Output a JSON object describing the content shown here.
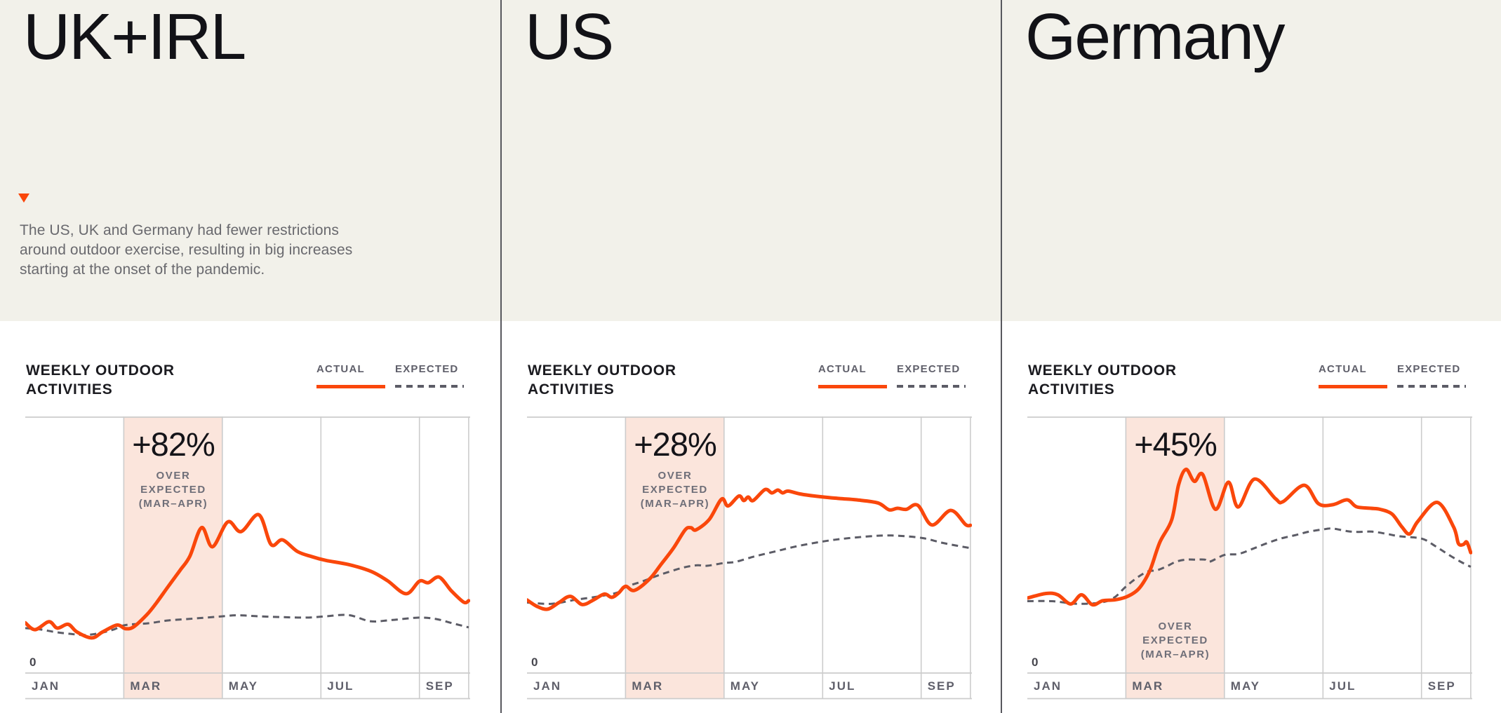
{
  "page": {
    "background": "#ffffff",
    "header_background": "#f2f1ea",
    "accent_orange": "#fa470b",
    "highlight_pink": "#fbe5dc",
    "divider_color": "#58585e",
    "gridline_color": "#cccccc",
    "expected_line_color": "#5c5c66",
    "label_gray": "#5f5f6a",
    "value_scale_note": "series values are 0-100 = share of plot height above the 0 baseline (estimated from pixels)"
  },
  "chart_data": [
    {
      "type": "line",
      "panel_title": "UK+IRL",
      "annotation": {
        "marker": "triangle-down",
        "lines": [
          "The US, UK and Germany had fewer restrictions",
          "around outdoor exercise, resulting in big increases",
          "starting at the onset of the pandemic."
        ]
      },
      "title_lines": [
        "WEEKLY OUTDOOR",
        "ACTIVITIES"
      ],
      "legend": [
        {
          "label": "ACTUAL",
          "style": "solid"
        },
        {
          "label": "EXPECTED",
          "style": "dashed"
        }
      ],
      "x_ticks": [
        "JAN",
        "MAR",
        "MAY",
        "JUL",
        "SEP"
      ],
      "zero_label": "0",
      "x_range_months": [
        0,
        9.0
      ],
      "gridline_months": [
        2,
        4,
        6,
        8
      ],
      "highlight": {
        "from_month": 2,
        "to_month": 4,
        "label": "+82%",
        "sub_lines": [
          "OVER",
          "EXPECTED",
          "(MAR–APR)"
        ],
        "sub_position": "top"
      },
      "series": {
        "actual": [
          [
            0,
            19.6
          ],
          [
            0.2,
            16.9
          ],
          [
            0.48,
            20
          ],
          [
            0.65,
            17.5
          ],
          [
            0.87,
            19
          ],
          [
            1.05,
            16
          ],
          [
            1.35,
            13.7
          ],
          [
            1.57,
            16
          ],
          [
            1.86,
            18.7
          ],
          [
            2.03,
            17.3
          ],
          [
            2.2,
            18
          ],
          [
            2.47,
            22.8
          ],
          [
            2.66,
            27.3
          ],
          [
            2.9,
            33.7
          ],
          [
            3.14,
            40
          ],
          [
            3.34,
            45.5
          ],
          [
            3.58,
            56.7
          ],
          [
            3.8,
            49.2
          ],
          [
            4.11,
            58.9
          ],
          [
            4.38,
            55.1
          ],
          [
            4.74,
            61.7
          ],
          [
            4.99,
            50.1
          ],
          [
            5.22,
            51.9
          ],
          [
            5.52,
            47.4
          ],
          [
            5.81,
            45.4
          ],
          [
            6.1,
            43.9
          ],
          [
            6.56,
            42.3
          ],
          [
            7.02,
            39.6
          ],
          [
            7.35,
            36
          ],
          [
            7.73,
            30.9
          ],
          [
            8.0,
            35.8
          ],
          [
            8.18,
            35.2
          ],
          [
            8.4,
            37.4
          ],
          [
            8.65,
            32
          ],
          [
            8.9,
            27.6
          ],
          [
            9.0,
            28.2
          ]
        ],
        "expected": [
          [
            0,
            17.5
          ],
          [
            0.3,
            17
          ],
          [
            0.6,
            16
          ],
          [
            0.9,
            15.3
          ],
          [
            1.2,
            14.8
          ],
          [
            1.5,
            15.5
          ],
          [
            1.8,
            17
          ],
          [
            2.03,
            18.7
          ],
          [
            2.5,
            19.4
          ],
          [
            2.9,
            20.5
          ],
          [
            3.4,
            21.2
          ],
          [
            4.0,
            22.1
          ],
          [
            4.3,
            22.5
          ],
          [
            4.74,
            22.1
          ],
          [
            5.2,
            21.8
          ],
          [
            5.7,
            21.6
          ],
          [
            6.1,
            22.1
          ],
          [
            6.56,
            22.6
          ],
          [
            7.0,
            20.2
          ],
          [
            7.4,
            20.6
          ],
          [
            8.0,
            21.6
          ],
          [
            8.35,
            21
          ],
          [
            8.65,
            19.5
          ],
          [
            9.0,
            17.8
          ]
        ]
      }
    },
    {
      "type": "line",
      "panel_title": "US",
      "title_lines": [
        "WEEKLY OUTDOOR",
        "ACTIVITIES"
      ],
      "legend": [
        {
          "label": "ACTUAL",
          "style": "solid"
        },
        {
          "label": "EXPECTED",
          "style": "dashed"
        }
      ],
      "x_ticks": [
        "JAN",
        "MAR",
        "MAY",
        "JUL",
        "SEP"
      ],
      "zero_label": "0",
      "x_range_months": [
        0,
        9.0
      ],
      "gridline_months": [
        2,
        4,
        6,
        8
      ],
      "highlight": {
        "from_month": 2,
        "to_month": 4,
        "label": "+28%",
        "sub_lines": [
          "OVER",
          "EXPECTED",
          "(MAR–APR)"
        ],
        "sub_position": "top"
      },
      "series": {
        "actual": [
          [
            0,
            28.5
          ],
          [
            0.2,
            26
          ],
          [
            0.42,
            24.9
          ],
          [
            0.65,
            27.5
          ],
          [
            0.88,
            29.9
          ],
          [
            1.12,
            26.7
          ],
          [
            1.35,
            28.5
          ],
          [
            1.57,
            30.8
          ],
          [
            1.72,
            29.5
          ],
          [
            1.86,
            31.2
          ],
          [
            2.0,
            33.8
          ],
          [
            2.18,
            32.2
          ],
          [
            2.49,
            36.7
          ],
          [
            2.73,
            42.6
          ],
          [
            2.97,
            48.6
          ],
          [
            3.21,
            55.8
          ],
          [
            3.33,
            56.6
          ],
          [
            3.43,
            55.8
          ],
          [
            3.7,
            59.9
          ],
          [
            3.95,
            67.8
          ],
          [
            4.08,
            65.1
          ],
          [
            4.3,
            69
          ],
          [
            4.4,
            67.2
          ],
          [
            4.49,
            68.6
          ],
          [
            4.59,
            67.2
          ],
          [
            4.83,
            71.5
          ],
          [
            4.97,
            70.2
          ],
          [
            5.09,
            71.3
          ],
          [
            5.19,
            70.2
          ],
          [
            5.3,
            70.9
          ],
          [
            5.57,
            69.7
          ],
          [
            6.01,
            68.6
          ],
          [
            6.35,
            68
          ],
          [
            6.68,
            67.5
          ],
          [
            7.12,
            66.3
          ],
          [
            7.35,
            63.6
          ],
          [
            7.52,
            64.2
          ],
          [
            7.7,
            63.8
          ],
          [
            7.93,
            65.4
          ],
          [
            8.22,
            57.7
          ],
          [
            8.6,
            63.4
          ],
          [
            8.9,
            57.9
          ],
          [
            9.0,
            57.6
          ]
        ],
        "expected": [
          [
            0,
            27.5
          ],
          [
            0.5,
            27
          ],
          [
            1.0,
            28.6
          ],
          [
            1.5,
            30
          ],
          [
            1.86,
            31.5
          ],
          [
            2.0,
            33.5
          ],
          [
            2.35,
            35.8
          ],
          [
            2.73,
            38.5
          ],
          [
            3.17,
            41.1
          ],
          [
            3.46,
            42
          ],
          [
            3.65,
            41.8
          ],
          [
            4.0,
            42.9
          ],
          [
            4.23,
            43.3
          ],
          [
            4.61,
            45.4
          ],
          [
            5.0,
            47.2
          ],
          [
            5.38,
            49
          ],
          [
            5.77,
            50.5
          ],
          [
            6.15,
            51.7
          ],
          [
            6.54,
            52.6
          ],
          [
            6.97,
            53.3
          ],
          [
            7.24,
            53.6
          ],
          [
            7.55,
            53.5
          ],
          [
            8.03,
            52.6
          ],
          [
            8.42,
            50.8
          ],
          [
            8.76,
            49.5
          ],
          [
            9.0,
            48.7
          ]
        ]
      }
    },
    {
      "type": "line",
      "panel_title": "Germany",
      "title_lines": [
        "WEEKLY OUTDOOR",
        "ACTIVITIES"
      ],
      "legend": [
        {
          "label": "ACTUAL",
          "style": "solid"
        },
        {
          "label": "EXPECTED",
          "style": "dashed"
        }
      ],
      "x_ticks": [
        "JAN",
        "MAR",
        "MAY",
        "JUL",
        "SEP"
      ],
      "zero_label": "0",
      "x_range_months": [
        0,
        9.0
      ],
      "gridline_months": [
        2,
        4,
        6,
        8
      ],
      "highlight": {
        "from_month": 2,
        "to_month": 4,
        "label": "+45%",
        "sub_lines": [
          "OVER",
          "EXPECTED",
          "(MAR–APR)"
        ],
        "sub_position": "bottom"
      },
      "series": {
        "actual": [
          [
            0,
            29.2
          ],
          [
            0.38,
            31
          ],
          [
            0.62,
            30.5
          ],
          [
            0.88,
            26.9
          ],
          [
            1.1,
            30.5
          ],
          [
            1.32,
            26.6
          ],
          [
            1.53,
            28.2
          ],
          [
            1.77,
            28.5
          ],
          [
            2.0,
            29.6
          ],
          [
            2.21,
            31.9
          ],
          [
            2.35,
            35.1
          ],
          [
            2.5,
            40.5
          ],
          [
            2.69,
            51
          ],
          [
            2.93,
            59.7
          ],
          [
            3.07,
            73.3
          ],
          [
            3.22,
            79.4
          ],
          [
            3.39,
            74.7
          ],
          [
            3.56,
            77.4
          ],
          [
            3.82,
            63.8
          ],
          [
            4.08,
            74.4
          ],
          [
            4.28,
            64.7
          ],
          [
            4.61,
            75.6
          ],
          [
            5.04,
            67.9
          ],
          [
            5.19,
            66.8
          ],
          [
            5.62,
            73.2
          ],
          [
            5.91,
            66
          ],
          [
            6.2,
            65.6
          ],
          [
            6.49,
            67.5
          ],
          [
            6.68,
            64.8
          ],
          [
            6.97,
            64.2
          ],
          [
            7.16,
            63.8
          ],
          [
            7.4,
            62
          ],
          [
            7.6,
            57
          ],
          [
            7.76,
            54.2
          ],
          [
            7.93,
            59.2
          ],
          [
            8.32,
            66.5
          ],
          [
            8.65,
            57
          ],
          [
            8.75,
            50.5
          ],
          [
            8.85,
            50.1
          ],
          [
            8.92,
            51
          ],
          [
            9.0,
            46.9
          ]
        ],
        "expected": [
          [
            0,
            28
          ],
          [
            0.5,
            28
          ],
          [
            1.0,
            27
          ],
          [
            1.5,
            27.5
          ],
          [
            1.77,
            29.5
          ],
          [
            2.0,
            33.7
          ],
          [
            2.26,
            37.6
          ],
          [
            2.45,
            39.6
          ],
          [
            2.64,
            40.1
          ],
          [
            2.83,
            41.6
          ],
          [
            3.02,
            43.4
          ],
          [
            3.22,
            44.2
          ],
          [
            3.41,
            44.2
          ],
          [
            3.6,
            44.2
          ],
          [
            3.7,
            43.4
          ],
          [
            4.0,
            46
          ],
          [
            4.28,
            46.4
          ],
          [
            4.56,
            48.3
          ],
          [
            4.85,
            50.5
          ],
          [
            5.14,
            52.4
          ],
          [
            5.43,
            53.7
          ],
          [
            5.72,
            55.1
          ],
          [
            6.01,
            56
          ],
          [
            6.2,
            56.3
          ],
          [
            6.49,
            55.3
          ],
          [
            6.7,
            55
          ],
          [
            7.0,
            55.1
          ],
          [
            7.3,
            54.2
          ],
          [
            7.55,
            53.3
          ],
          [
            8.0,
            52.4
          ],
          [
            8.27,
            49.6
          ],
          [
            8.56,
            46
          ],
          [
            8.8,
            43.3
          ],
          [
            9.0,
            41.4
          ]
        ]
      }
    }
  ]
}
